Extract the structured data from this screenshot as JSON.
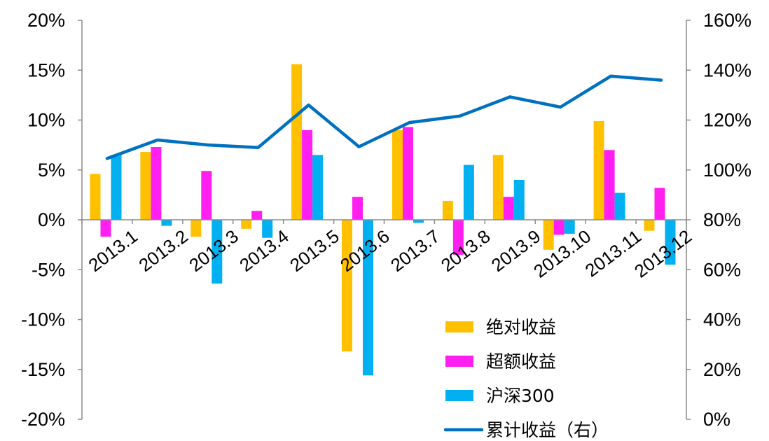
{
  "chart_data": {
    "type": "bar",
    "categories": [
      "2013.1",
      "2013.2",
      "2013.3",
      "2013.4",
      "2013.5",
      "2013.6",
      "2013.7",
      "2013.8",
      "2013.9",
      "2013.10",
      "2013.11",
      "2013.12"
    ],
    "series": [
      {
        "name": "绝对收益",
        "type": "bar",
        "axis": "left",
        "color": "#FFC000",
        "values": [
          4.6,
          6.8,
          -1.7,
          -0.9,
          15.6,
          -13.2,
          9.0,
          1.9,
          6.5,
          -3.0,
          9.9,
          -1.1
        ]
      },
      {
        "name": "超额收益",
        "type": "bar",
        "axis": "left",
        "color": "#FF1FF0",
        "values": [
          -1.7,
          7.3,
          4.9,
          0.9,
          9.0,
          2.3,
          9.3,
          -3.5,
          2.3,
          -1.5,
          7.0,
          3.2
        ]
      },
      {
        "name": "沪深300",
        "type": "bar",
        "axis": "left",
        "color": "#00B0F0",
        "values": [
          6.5,
          -0.6,
          -6.4,
          -1.8,
          6.5,
          -15.6,
          -0.3,
          5.5,
          4.0,
          -1.4,
          2.7,
          -4.5
        ]
      },
      {
        "name": "累计收益（右）",
        "type": "line",
        "axis": "right",
        "color": "#0070C0",
        "values": [
          104.6,
          112.0,
          110.0,
          109.0,
          126.0,
          109.3,
          119.0,
          121.6,
          129.3,
          125.2,
          137.6,
          136.0
        ]
      }
    ],
    "y_left": {
      "range": [
        -20,
        20
      ],
      "ticks": [
        "20%",
        "15%",
        "10%",
        "5%",
        "0%",
        "-5%",
        "-10%",
        "-15%",
        "-20%"
      ]
    },
    "y_right": {
      "range": [
        0,
        160
      ],
      "ticks": [
        "160%",
        "140%",
        "120%",
        "100%",
        "80%",
        "60%",
        "40%",
        "20%",
        "0%"
      ]
    },
    "grid": false,
    "legend_position": "bottom-right"
  }
}
